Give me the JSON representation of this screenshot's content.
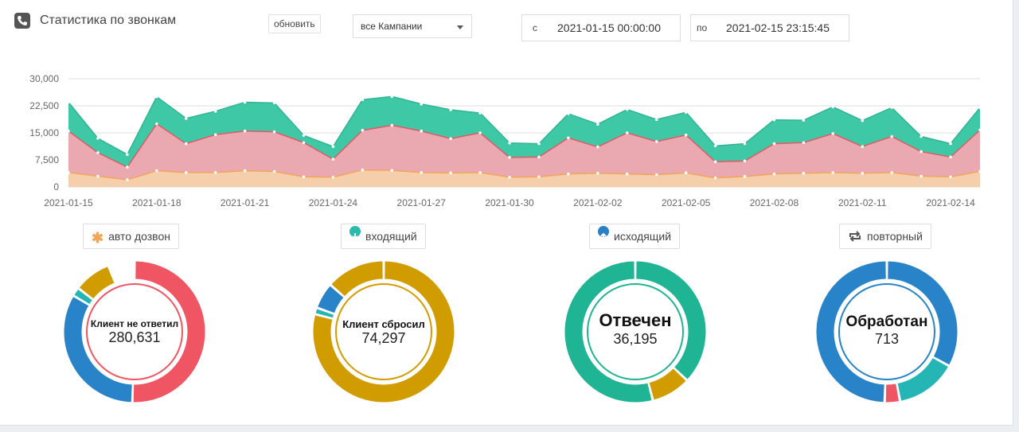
{
  "header": {
    "title": "Статистика по звонкам",
    "icon": "phone-icon",
    "refresh_label": "обновить",
    "campaign_select": "все Кампании",
    "date_from_prefix": "с",
    "date_from": "2021-01-15 00:00:00",
    "date_to_prefix": "по",
    "date_to": "2021-02-15 23:15:45"
  },
  "chart_data": {
    "type": "area",
    "stacked": true,
    "y_ticks": [
      "30,000",
      "22,500",
      "15,000",
      "7,500",
      "0"
    ],
    "ylim": [
      0,
      30000
    ],
    "grid": true,
    "x_ticks": [
      "2021-01-15",
      "2021-01-18",
      "2021-01-21",
      "2021-01-24",
      "2021-01-27",
      "2021-01-30",
      "2021-02-02",
      "2021-02-05",
      "2021-02-08",
      "2021-02-11",
      "2021-02-14"
    ],
    "x": [
      "2021-01-15",
      "2021-01-16",
      "2021-01-17",
      "2021-01-18",
      "2021-01-19",
      "2021-01-20",
      "2021-01-21",
      "2021-01-22",
      "2021-01-23",
      "2021-01-24",
      "2021-01-25",
      "2021-01-26",
      "2021-01-27",
      "2021-01-28",
      "2021-01-29",
      "2021-01-30",
      "2021-01-31",
      "2021-02-01",
      "2021-02-02",
      "2021-02-03",
      "2021-02-04",
      "2021-02-05",
      "2021-02-06",
      "2021-02-07",
      "2021-02-08",
      "2021-02-09",
      "2021-02-10",
      "2021-02-11",
      "2021-02-12",
      "2021-02-13",
      "2021-02-14",
      "2021-02-15"
    ],
    "series": [
      {
        "color": "#f5ceab",
        "line": "#f2a65a",
        "values": [
          4000,
          3000,
          2000,
          4500,
          4000,
          4000,
          4500,
          4300,
          2800,
          2700,
          4700,
          4600,
          4000,
          3900,
          4000,
          2700,
          2800,
          3600,
          3800,
          3600,
          3400,
          3900,
          2500,
          2900,
          3600,
          3800,
          4000,
          3800,
          4000,
          3000,
          2800,
          4300
        ]
      },
      {
        "color": "#eaa8b0",
        "line": "#e05a64",
        "values": [
          11500,
          6500,
          3500,
          13000,
          8000,
          10500,
          11000,
          11000,
          9500,
          5000,
          11000,
          12500,
          11500,
          9500,
          11000,
          5500,
          5500,
          10000,
          7300,
          11400,
          9200,
          10500,
          4500,
          4300,
          8400,
          8500,
          10800,
          7400,
          10000,
          6800,
          5500,
          11500
        ]
      },
      {
        "color": "#3ec8a5",
        "line": "#2fb591",
        "values": [
          8000,
          4000,
          3500,
          7500,
          7000,
          6500,
          8000,
          8000,
          2000,
          3500,
          8500,
          8000,
          7500,
          8000,
          5500,
          4000,
          3700,
          6700,
          6300,
          6500,
          6100,
          6300,
          4400,
          4800,
          6600,
          6200,
          7400,
          7200,
          8000,
          4200,
          3700,
          6200
        ]
      }
    ]
  },
  "tabs": [
    {
      "label": "авто дозвон",
      "icon": "asterisk-icon",
      "color": "#f2a654"
    },
    {
      "label": "входящий",
      "icon": "arrow-down-circle-icon",
      "color": "#2bbbad"
    },
    {
      "label": "исходящий",
      "icon": "arrow-up-circle-icon",
      "color": "#2980c7"
    },
    {
      "label": "повторный",
      "icon": "repeat-icon",
      "color": "#555555"
    }
  ],
  "donuts": [
    {
      "name": "Клиент не ответил",
      "value": "280,631",
      "segments": [
        {
          "color": "#ef5562",
          "frac": 0.505
        },
        {
          "color": "#2983c8",
          "frac": 0.33
        },
        {
          "color": "#26b5b5",
          "frac": 0.02
        },
        {
          "color": "#d19c00",
          "frac": 0.085
        }
      ]
    },
    {
      "name": "Клиент сбросил",
      "value": "74,297",
      "segments": [
        {
          "color": "#d19c00",
          "frac": 0.79
        },
        {
          "color": "#26b5b5",
          "frac": 0.015
        },
        {
          "color": "#2983c8",
          "frac": 0.06
        },
        {
          "color": "#d19c00",
          "frac": 0.135
        }
      ]
    },
    {
      "name": "Отвечен",
      "value": "36,195",
      "segments": [
        {
          "color": "#1eb494",
          "frac": 0.37
        },
        {
          "color": "#d19c00",
          "frac": 0.09
        },
        {
          "color": "#1eb494",
          "frac": 0.54
        }
      ]
    },
    {
      "name": "Обработан",
      "value": "713",
      "segments": [
        {
          "color": "#2983c8",
          "frac": 0.33
        },
        {
          "color": "#26b5b5",
          "frac": 0.14
        },
        {
          "color": "#ef5562",
          "frac": 0.035
        },
        {
          "color": "#2983c8",
          "frac": 0.495
        }
      ]
    }
  ]
}
